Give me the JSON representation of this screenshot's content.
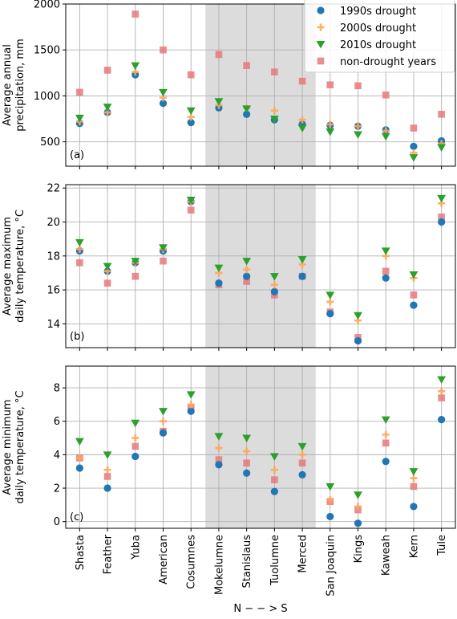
{
  "chart_data": {
    "type": "scatter",
    "xlabel": "N − − > S",
    "categories": [
      "Shasta",
      "Feather",
      "Yuba",
      "American",
      "Cosumnes",
      "Mokelumne",
      "Stanislaus",
      "Tuolumne",
      "Merced",
      "San Joaquin",
      "Kings",
      "Kaweah",
      "Kern",
      "Tule"
    ],
    "shaded_categories": [
      "Mokelumne",
      "Stanislaus",
      "Tuolumne",
      "Merced"
    ],
    "grid": true,
    "legend": {
      "placement": "top-right of panel (a)",
      "entries": [
        "1990s drought",
        "2000s drought",
        "2010s drought",
        "non-drought years"
      ]
    },
    "series_styles": [
      {
        "name": "1990s drought",
        "marker": "circle",
        "color": "#1f77b4"
      },
      {
        "name": "2000s drought",
        "marker": "plus",
        "color": "#ffa65a"
      },
      {
        "name": "2010s drought",
        "marker": "triangle-down",
        "color": "#2ca02c"
      },
      {
        "name": "non-drought years",
        "marker": "square",
        "color": "#e8787a"
      }
    ],
    "panels": [
      {
        "tag": "(a)",
        "ylabel": [
          "Average annual",
          "precipitation, mm"
        ],
        "ylim": [
          235,
          2000
        ],
        "yticks": [
          500,
          1000,
          1500,
          2000
        ],
        "series": [
          {
            "name": "1990s drought",
            "values": [
              700,
              820,
              1230,
              920,
              710,
              870,
              800,
              740,
              690,
              680,
              670,
              630,
              450,
              510
            ]
          },
          {
            "name": "2000s drought",
            "values": [
              720,
              820,
              1260,
              980,
              770,
              900,
              870,
              840,
              740,
              690,
              670,
              620,
              380,
              480
            ]
          },
          {
            "name": "2010s drought",
            "values": [
              760,
              880,
              1330,
              1040,
              840,
              940,
              860,
              750,
              650,
              610,
              580,
              560,
              330,
              440
            ]
          },
          {
            "name": "non-drought years",
            "values": [
              1040,
              1280,
              1890,
              1500,
              1230,
              1450,
              1330,
              1260,
              1160,
              1120,
              1110,
              1010,
              650,
              800
            ]
          }
        ]
      },
      {
        "tag": "(b)",
        "ylabel": [
          "Average maximum",
          "daily temperature, °C"
        ],
        "ylim": [
          12.6,
          22.2
        ],
        "yticks": [
          14,
          16,
          18,
          20,
          22
        ],
        "series": [
          {
            "name": "1990s drought",
            "values": [
              18.3,
              17.1,
              17.6,
              18.3,
              21.2,
              16.4,
              16.8,
              15.9,
              16.8,
              14.6,
              13.0,
              16.7,
              15.1,
              20.0
            ]
          },
          {
            "name": "2000s drought",
            "values": [
              18.4,
              17.1,
              17.6,
              18.4,
              21.2,
              17.0,
              17.2,
              16.3,
              17.5,
              15.3,
              14.2,
              18.0,
              16.7,
              21.1
            ]
          },
          {
            "name": "2010s drought",
            "values": [
              18.8,
              17.4,
              17.7,
              18.5,
              21.3,
              17.3,
              17.7,
              16.8,
              17.8,
              15.7,
              14.5,
              18.3,
              16.9,
              21.4
            ]
          },
          {
            "name": "non-drought years",
            "values": [
              17.6,
              16.4,
              16.8,
              17.7,
              20.7,
              16.3,
              16.5,
              15.7,
              16.8,
              14.7,
              13.2,
              17.1,
              15.7,
              20.3
            ]
          }
        ]
      },
      {
        "tag": "(c)",
        "ylabel": [
          "Average minimum",
          "daily temperature, °C"
        ],
        "ylim": [
          -0.4,
          9.3
        ],
        "yticks": [
          0,
          2,
          4,
          6,
          8
        ],
        "series": [
          {
            "name": "1990s drought",
            "values": [
              3.2,
              2.0,
              3.9,
              5.3,
              6.6,
              3.4,
              2.9,
              1.8,
              2.8,
              0.3,
              -0.1,
              3.6,
              0.9,
              6.1
            ]
          },
          {
            "name": "2000s drought",
            "values": [
              3.8,
              3.1,
              5.0,
              6.0,
              7.0,
              4.4,
              4.2,
              3.1,
              4.0,
              1.3,
              0.9,
              5.2,
              2.6,
              7.8
            ]
          },
          {
            "name": "2010s drought",
            "values": [
              4.8,
              4.0,
              5.9,
              6.6,
              7.6,
              5.1,
              5.0,
              3.9,
              4.5,
              2.1,
              1.6,
              6.1,
              3.0,
              8.5
            ]
          },
          {
            "name": "non-drought years",
            "values": [
              3.8,
              2.7,
              4.5,
              5.4,
              6.8,
              3.7,
              3.5,
              2.5,
              3.5,
              1.2,
              0.7,
              4.7,
              2.1,
              7.4
            ]
          }
        ]
      }
    ]
  }
}
